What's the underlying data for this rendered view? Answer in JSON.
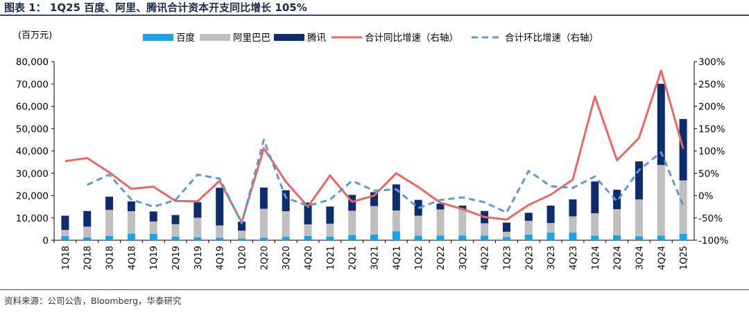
{
  "figure": {
    "title": "图表 1： 1Q25 百度、阿里、腾讯合计资本开支同比增长 105%",
    "source": "资料来源：公司公告，Bloomberg，华泰研究"
  },
  "colors": {
    "baidu": "#1aa3e8",
    "alibaba": "#bfbfbf",
    "tencent": "#0c2c6e",
    "yoy": "#ef6461",
    "qoq": "#5b9bd5",
    "rule": "#2e4a87"
  },
  "chart_data": {
    "type": "bar",
    "stacked": true,
    "y_unit_label": "(百万元)",
    "categories": [
      "1Q18",
      "2Q18",
      "3Q18",
      "4Q18",
      "1Q19",
      "2Q19",
      "3Q19",
      "4Q19",
      "1Q20",
      "2Q20",
      "3Q20",
      "4Q20",
      "1Q21",
      "2Q21",
      "3Q21",
      "4Q21",
      "1Q22",
      "2Q22",
      "3Q22",
      "4Q22",
      "1Q23",
      "2Q23",
      "3Q23",
      "4Q23",
      "1Q24",
      "2Q24",
      "3Q24",
      "4Q24",
      "1Q25"
    ],
    "series": [
      {
        "name": "百度",
        "kind": "bar",
        "axis": "left",
        "values": [
          1900,
          1300,
          1900,
          3000,
          2900,
          1600,
          1300,
          1100,
          800,
          1100,
          1500,
          1900,
          1600,
          2300,
          2500,
          4000,
          2000,
          2100,
          2100,
          2100,
          1400,
          2500,
          3400,
          3500,
          2100,
          2200,
          1800,
          2100,
          2900
        ]
      },
      {
        "name": "阿里巴巴",
        "kind": "bar",
        "axis": "left",
        "values": [
          2700,
          4800,
          11700,
          10000,
          5500,
          5600,
          8800,
          5500,
          3500,
          13000,
          11500,
          5200,
          5800,
          10900,
          12800,
          9300,
          9000,
          11700,
          11700,
          5500,
          2400,
          6200,
          4300,
          7200,
          10000,
          11700,
          16500,
          31600,
          23900
        ]
      },
      {
        "name": "腾讯",
        "kind": "bar",
        "axis": "left",
        "values": [
          6400,
          7000,
          5900,
          4400,
          4500,
          4100,
          6900,
          16900,
          4000,
          9500,
          9400,
          9800,
          7700,
          7100,
          6200,
          11700,
          7100,
          2600,
          1700,
          5500,
          4100,
          3600,
          7800,
          7600,
          14200,
          8700,
          17000,
          36400,
          27500
        ]
      },
      {
        "name": "合计同比增速（右轴）",
        "kind": "line",
        "axis": "right",
        "style": "solid",
        "values": [
          77,
          84,
          52,
          15,
          20,
          -12,
          -13,
          33,
          -60,
          106,
          31,
          -25,
          45,
          -14,
          0,
          50,
          19,
          -16,
          -30,
          -48,
          -54,
          -21,
          2,
          36,
          222,
          79,
          129,
          280,
          105
        ]
      },
      {
        "name": "合计环比增速（右轴）",
        "kind": "line",
        "axis": "right",
        "style": "dashed",
        "values": [
          null,
          24,
          47,
          -9,
          -25,
          -10,
          47,
          38,
          -62,
          125,
          -5,
          -23,
          -9,
          33,
          11,
          14,
          -28,
          -10,
          -4,
          -15,
          -38,
          55,
          21,
          17,
          43,
          -13,
          57,
          97,
          -22
        ]
      }
    ],
    "y_left": {
      "min": 0,
      "max": 80000,
      "step": 10000,
      "ticks": [
        "0",
        "10,000",
        "20,000",
        "30,000",
        "40,000",
        "50,000",
        "60,000",
        "70,000",
        "80,000"
      ]
    },
    "y_right": {
      "min": -100,
      "max": 300,
      "step": 50,
      "ticks": [
        "-100%",
        "-50%",
        "0%",
        "50%",
        "100%",
        "150%",
        "200%",
        "250%",
        "300%"
      ]
    },
    "legend": "top",
    "grid": false
  }
}
